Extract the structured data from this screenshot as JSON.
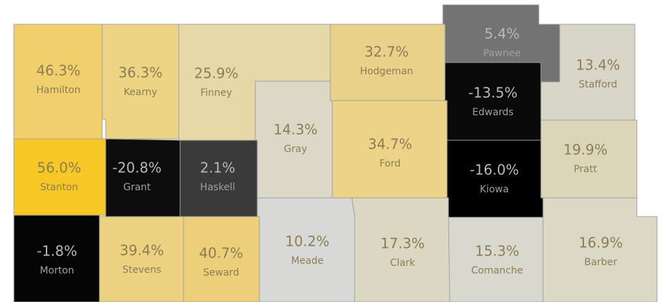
{
  "map": {
    "regions": [
      {
        "name": "Hamilton",
        "value": 46.3,
        "value_label": "46.3%",
        "color": "#f0cf6c"
      },
      {
        "name": "Kearny",
        "value": 36.3,
        "value_label": "36.3%",
        "color": "#ecd484"
      },
      {
        "name": "Finney",
        "value": 25.9,
        "value_label": "25.9%",
        "color": "#e6d8a7"
      },
      {
        "name": "Hodgeman",
        "value": 32.7,
        "value_label": "32.7%",
        "color": "#ead189"
      },
      {
        "name": "Pawnee",
        "value": 5.4,
        "value_label": "5.4%",
        "color": "#737373"
      },
      {
        "name": "Stafford",
        "value": 13.4,
        "value_label": "13.4%",
        "color": "#d8d6c8"
      },
      {
        "name": "Edwards",
        "value": -13.5,
        "value_label": "-13.5%",
        "color": "#0a0a0a"
      },
      {
        "name": "Gray",
        "value": 14.3,
        "value_label": "14.3%",
        "color": "#dcd8c8"
      },
      {
        "name": "Ford",
        "value": 34.7,
        "value_label": "34.7%",
        "color": "#ecd387"
      },
      {
        "name": "Kiowa",
        "value": -16.0,
        "value_label": "-16.0%",
        "color": "#000000"
      },
      {
        "name": "Pratt",
        "value": 19.9,
        "value_label": "19.9%",
        "color": "#dcd6b8"
      },
      {
        "name": "Stanton",
        "value": 56.0,
        "value_label": "56.0%",
        "color": "#f7c825"
      },
      {
        "name": "Grant",
        "value": -20.8,
        "value_label": "-20.8%",
        "color": "#0c0c0c"
      },
      {
        "name": "Haskell",
        "value": 2.1,
        "value_label": "2.1%",
        "color": "#3a3a3a"
      },
      {
        "name": "Morton",
        "value": -1.8,
        "value_label": "-1.8%",
        "color": "#050505"
      },
      {
        "name": "Stevens",
        "value": 39.4,
        "value_label": "39.4%",
        "color": "#ecd181"
      },
      {
        "name": "Seward",
        "value": 40.7,
        "value_label": "40.7%",
        "color": "#eccf78"
      },
      {
        "name": "Meade",
        "value": 10.2,
        "value_label": "10.2%",
        "color": "#d8d8d6"
      },
      {
        "name": "Clark",
        "value": 17.3,
        "value_label": "17.3%",
        "color": "#dcd7c2"
      },
      {
        "name": "Comanche",
        "value": 15.3,
        "value_label": "15.3%",
        "color": "#d9d8cf"
      },
      {
        "name": "Barber",
        "value": 16.9,
        "value_label": "16.9%",
        "color": "#dbd8c6"
      }
    ]
  }
}
